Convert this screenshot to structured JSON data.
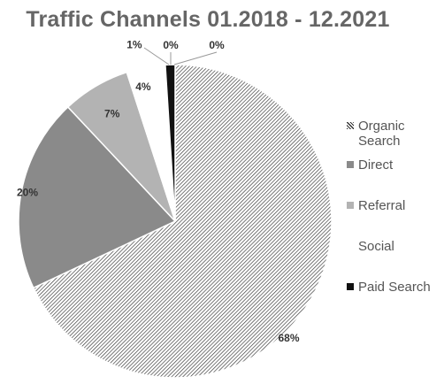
{
  "chart_data": {
    "type": "pie",
    "title": "Traffic Channels 01.2018 - 12.2021",
    "categories": [
      "Organic Search",
      "Direct",
      "Referral",
      "Social",
      "Paid Search"
    ],
    "values": [
      68,
      20,
      7,
      4,
      1
    ],
    "labels": [
      "68%",
      "20%",
      "7%",
      "4%",
      "1%"
    ],
    "extra_labels": [
      "0%",
      "0%"
    ],
    "colors": {
      "Organic Search": "#3a3a3a",
      "Direct": "#8a8a8a",
      "Referral": "#b3b3b3",
      "Social": "#ffffff",
      "Paid Search": "#111111"
    },
    "legend_position": "right",
    "start_angle_deg": 0,
    "direction": "clockwise"
  }
}
